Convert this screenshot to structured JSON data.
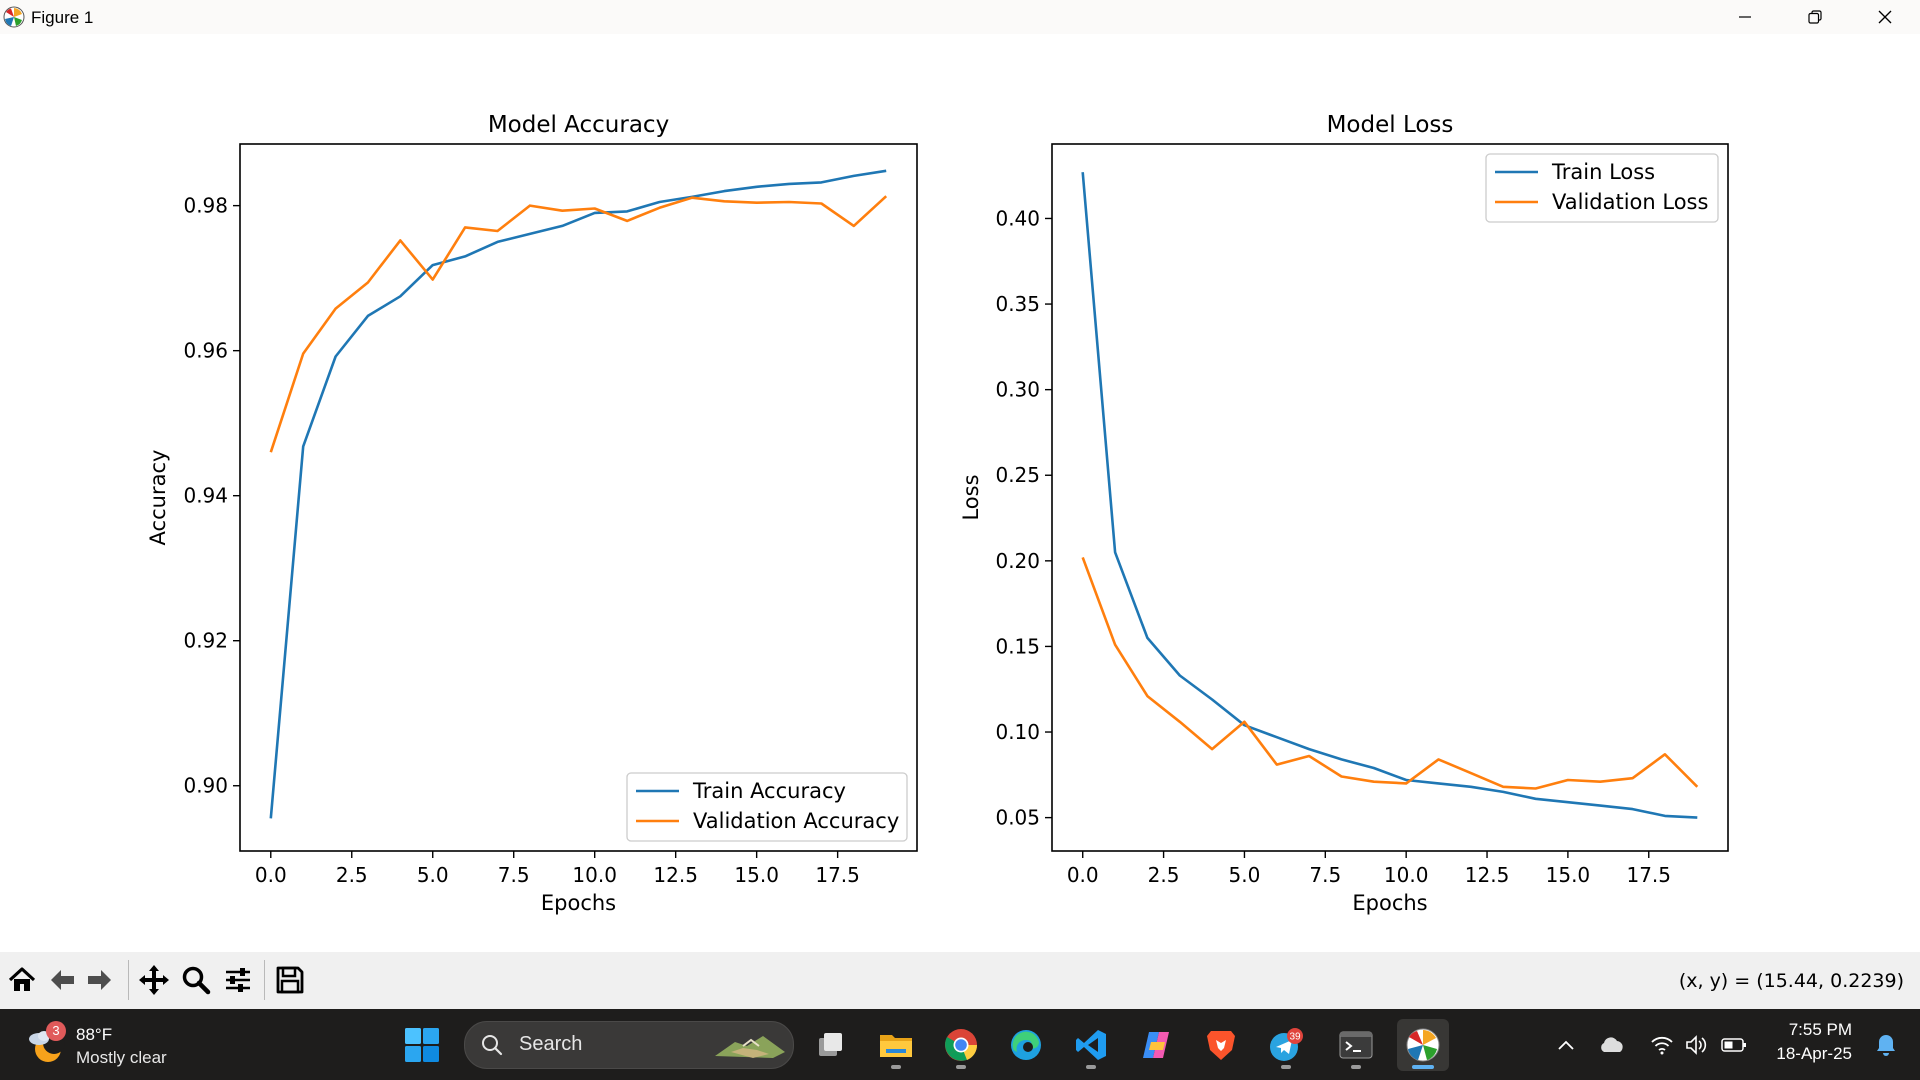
{
  "window": {
    "title": "Figure 1"
  },
  "chart_data": [
    {
      "type": "line",
      "title": "Model Accuracy",
      "xlabel": "Epochs",
      "ylabel": "Accuracy",
      "xlim": [
        -0.95,
        19.95
      ],
      "ylim": [
        0.891,
        0.9885
      ],
      "xticks": [
        0,
        2.5,
        5,
        7.5,
        10,
        12.5,
        15,
        17.5
      ],
      "xtick_labels": [
        "0.0",
        "2.5",
        "5.0",
        "7.5",
        "10.0",
        "12.5",
        "15.0",
        "17.5"
      ],
      "yticks": [
        0.9,
        0.92,
        0.94,
        0.96,
        0.98
      ],
      "ytick_labels": [
        "0.90",
        "0.92",
        "0.94",
        "0.96",
        "0.98"
      ],
      "legend_loc": "lower right",
      "grid": false,
      "x": [
        0,
        1,
        2,
        3,
        4,
        5,
        6,
        7,
        8,
        9,
        10,
        11,
        12,
        13,
        14,
        15,
        16,
        17,
        18,
        19
      ],
      "series": [
        {
          "name": "Train Accuracy",
          "color": "#1f77b4",
          "values": [
            0.8955,
            0.9468,
            0.9592,
            0.9648,
            0.9675,
            0.9718,
            0.973,
            0.975,
            0.9761,
            0.9772,
            0.979,
            0.9792,
            0.9805,
            0.9812,
            0.982,
            0.9826,
            0.983,
            0.9832,
            0.9841,
            0.9848
          ]
        },
        {
          "name": "Validation Accuracy",
          "color": "#ff7f0e",
          "values": [
            0.946,
            0.9596,
            0.9658,
            0.9694,
            0.9752,
            0.9698,
            0.977,
            0.9765,
            0.98,
            0.9793,
            0.9796,
            0.9779,
            0.9797,
            0.9811,
            0.9806,
            0.9804,
            0.9805,
            0.9803,
            0.9772,
            0.9813
          ]
        }
      ]
    },
    {
      "type": "line",
      "title": "Model Loss",
      "xlabel": "Epochs",
      "ylabel": "Loss",
      "xlim": [
        -0.95,
        19.95
      ],
      "ylim": [
        0.0305,
        0.4435
      ],
      "xticks": [
        0,
        2.5,
        5,
        7.5,
        10,
        12.5,
        15,
        17.5
      ],
      "xtick_labels": [
        "0.0",
        "2.5",
        "5.0",
        "7.5",
        "10.0",
        "12.5",
        "15.0",
        "17.5"
      ],
      "yticks": [
        0.05,
        0.1,
        0.15,
        0.2,
        0.25,
        0.3,
        0.35,
        0.4
      ],
      "ytick_labels": [
        "0.05",
        "0.10",
        "0.15",
        "0.20",
        "0.25",
        "0.30",
        "0.35",
        "0.40"
      ],
      "legend_loc": "upper right",
      "grid": false,
      "x": [
        0,
        1,
        2,
        3,
        4,
        5,
        6,
        7,
        8,
        9,
        10,
        11,
        12,
        13,
        14,
        15,
        16,
        17,
        18,
        19
      ],
      "series": [
        {
          "name": "Train Loss",
          "color": "#1f77b4",
          "values": [
            0.427,
            0.205,
            0.155,
            0.133,
            0.119,
            0.104,
            0.097,
            0.09,
            0.084,
            0.079,
            0.072,
            0.07,
            0.068,
            0.065,
            0.061,
            0.059,
            0.057,
            0.055,
            0.051,
            0.05
          ]
        },
        {
          "name": "Validation Loss",
          "color": "#ff7f0e",
          "values": [
            0.202,
            0.151,
            0.121,
            0.106,
            0.09,
            0.106,
            0.081,
            0.086,
            0.074,
            0.071,
            0.07,
            0.084,
            0.076,
            0.068,
            0.067,
            0.072,
            0.071,
            0.073,
            0.087,
            0.068
          ]
        }
      ]
    }
  ],
  "toolbar": {
    "buttons": [
      "home-icon",
      "back-arrow-icon",
      "forward-arrow-icon",
      "pan-icon",
      "zoom-icon",
      "subplots-config-icon",
      "save-icon"
    ],
    "coords_text": "(x, y) = (15.44, 0.2239)"
  },
  "taskbar": {
    "weather": {
      "badge": "3",
      "temp": "88°F",
      "desc": "Mostly clear"
    },
    "search_placeholder": "Search",
    "apps": [
      "task-view-icon",
      "file-explorer-icon",
      "chrome-icon",
      "edge-icon",
      "vscode-icon",
      "copilot-icon",
      "brave-icon",
      "telegram-icon",
      "terminal-icon",
      "python-figure-icon"
    ],
    "telegram_badge": "39",
    "clock": {
      "time": "7:55 PM",
      "date": "18-Apr-25"
    }
  }
}
